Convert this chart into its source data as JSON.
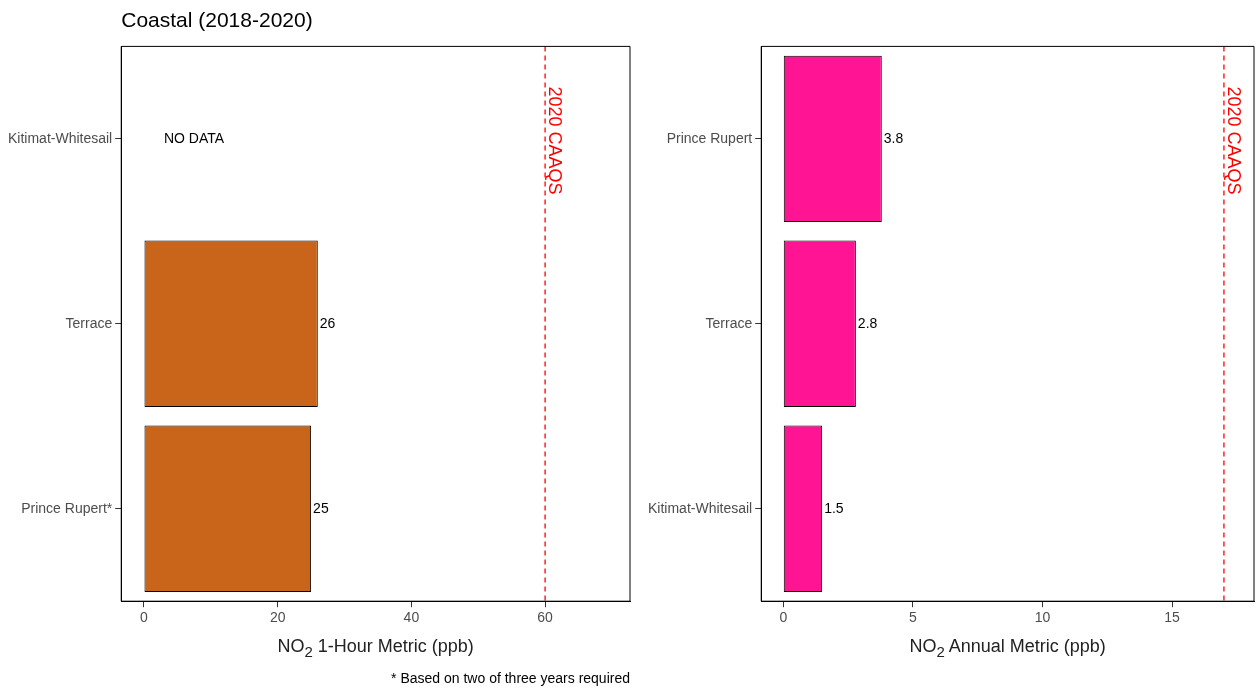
{
  "chart_data": [
    {
      "type": "bar",
      "orientation": "horizontal",
      "title": "Coastal (2018-2020)",
      "xlabel": "NO$_{2}$ 1-Hour Metric (ppb)",
      "categories": [
        "Kitimat-Whitesail",
        "Terrace",
        "Prince Rupert*"
      ],
      "values": [
        null,
        26,
        25
      ],
      "color": "#c8651b",
      "xlim": [
        -3.4,
        72.7
      ],
      "xticks": [
        0,
        20,
        40,
        60
      ],
      "grid": false,
      "legend": false,
      "data_labels": true,
      "ref_lines": [
        {
          "axis": "x",
          "value": 60,
          "label": "2020 CAAQS",
          "color": "#ff0000",
          "line_style": "dashed"
        }
      ],
      "annotations": [
        "NO DATA",
        "* Based on two of three years required"
      ]
    },
    {
      "type": "bar",
      "orientation": "horizontal",
      "xlabel": "NO$_{2}$ Annual Metric (ppb)",
      "categories": [
        "Prince Rupert",
        "Terrace",
        "Kitimat-Whitesail"
      ],
      "values": [
        3.8,
        2.8,
        1.5
      ],
      "color": "#ff1493",
      "xlim": [
        -0.85,
        18.16
      ],
      "xticks": [
        0,
        5,
        10,
        15
      ],
      "grid": false,
      "legend": false,
      "data_labels": true,
      "ref_lines": [
        {
          "axis": "x",
          "value": 17,
          "label": "2020 CAAQS",
          "color": "#ff0000",
          "line_style": "dashed"
        }
      ]
    }
  ]
}
